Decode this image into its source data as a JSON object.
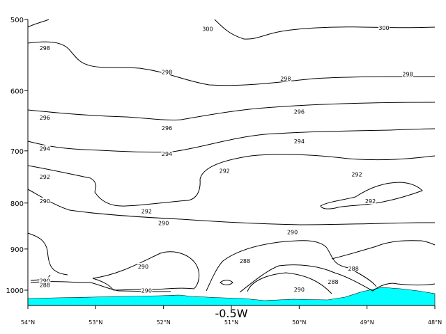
{
  "chart_data": {
    "type": "contour",
    "title": "",
    "section_label": "-0.5W",
    "xlabel": "",
    "ylabel": "",
    "x_ticks": [
      "54°N",
      "53°N",
      "52°N",
      "51°N",
      "50°N",
      "49°N",
      "48°N"
    ],
    "x_tick_values": [
      54,
      53,
      52,
      51,
      50,
      49,
      48
    ],
    "xlim": [
      54,
      48
    ],
    "y_ticks": [
      "500",
      "600",
      "700",
      "800",
      "900",
      "1000"
    ],
    "y_tick_values": [
      500,
      600,
      700,
      800,
      900,
      1000
    ],
    "ylim": [
      500,
      1040
    ],
    "y_scale": "log",
    "y_inverted": true,
    "grid": false,
    "terrain_color": "#00ffff",
    "contour_levels": [
      288,
      290,
      292,
      294,
      296,
      298,
      300
    ],
    "contour_labels": [
      {
        "text": "300",
        "lat": 51.35,
        "p": 512
      },
      {
        "text": "300",
        "lat": 48.75,
        "p": 511
      },
      {
        "text": "298",
        "lat": 53.75,
        "p": 538
      },
      {
        "text": "298",
        "lat": 51.95,
        "p": 572
      },
      {
        "text": "298",
        "lat": 50.2,
        "p": 582
      },
      {
        "text": "298",
        "lat": 48.4,
        "p": 575
      },
      {
        "text": "296",
        "lat": 53.75,
        "p": 643
      },
      {
        "text": "296",
        "lat": 51.95,
        "p": 660
      },
      {
        "text": "296",
        "lat": 50.0,
        "p": 633
      },
      {
        "text": "294",
        "lat": 53.75,
        "p": 696
      },
      {
        "text": "294",
        "lat": 51.95,
        "p": 705
      },
      {
        "text": "294",
        "lat": 50.0,
        "p": 683
      },
      {
        "text": "292",
        "lat": 53.75,
        "p": 748
      },
      {
        "text": "292",
        "lat": 52.25,
        "p": 817
      },
      {
        "text": "292",
        "lat": 51.1,
        "p": 737
      },
      {
        "text": "292",
        "lat": 49.15,
        "p": 743
      },
      {
        "text": "292",
        "lat": 48.95,
        "p": 796
      },
      {
        "text": "290",
        "lat": 53.75,
        "p": 796
      },
      {
        "text": "290",
        "lat": 52.0,
        "p": 842
      },
      {
        "text": "290",
        "lat": 50.1,
        "p": 862
      },
      {
        "text": "290",
        "lat": 52.3,
        "p": 941
      },
      {
        "text": "290",
        "lat": 53.75,
        "p": 976
      },
      {
        "text": "290",
        "lat": 52.25,
        "p": 1001
      },
      {
        "text": "290",
        "lat": 50.0,
        "p": 998
      },
      {
        "text": "288",
        "lat": 53.75,
        "p": 987
      },
      {
        "text": "288",
        "lat": 50.8,
        "p": 928
      },
      {
        "text": "288",
        "lat": 49.2,
        "p": 946
      },
      {
        "text": "288",
        "lat": 49.5,
        "p": 979
      }
    ]
  }
}
